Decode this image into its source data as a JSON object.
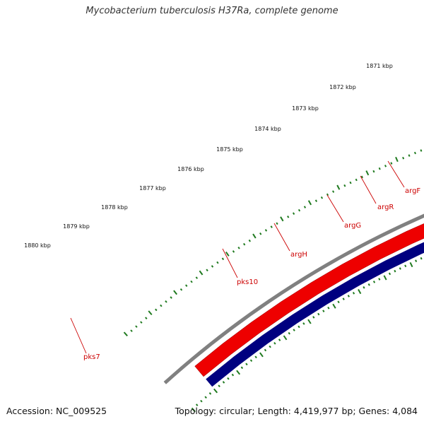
{
  "title": "Mycobacterium tuberculosis H37Ra, complete genome",
  "footer": {
    "accession": "Accession: NC_009525",
    "stats": "Topology: circular; Length: 4,419,977 bp; Genes: 4,084"
  },
  "colors": {
    "backbone": "#808080",
    "forward_gene": "#ee0000",
    "reverse_pks": "#000080",
    "reverse_arg": "#4f7fb8",
    "argR": "#ff9a1a",
    "tick": "#1f7a1f",
    "label": "#cc0000"
  },
  "kbp_ticks": [
    "1880 kbp",
    "1879 kbp",
    "1878 kbp",
    "1877 kbp",
    "1876 kbp",
    "1875 kbp",
    "1874 kbp",
    "1873 kbp",
    "1872 kbp",
    "1871 kbp"
  ],
  "gene_labels": [
    "pks7",
    "pks10",
    "argH",
    "argG",
    "argR",
    "argF"
  ]
}
